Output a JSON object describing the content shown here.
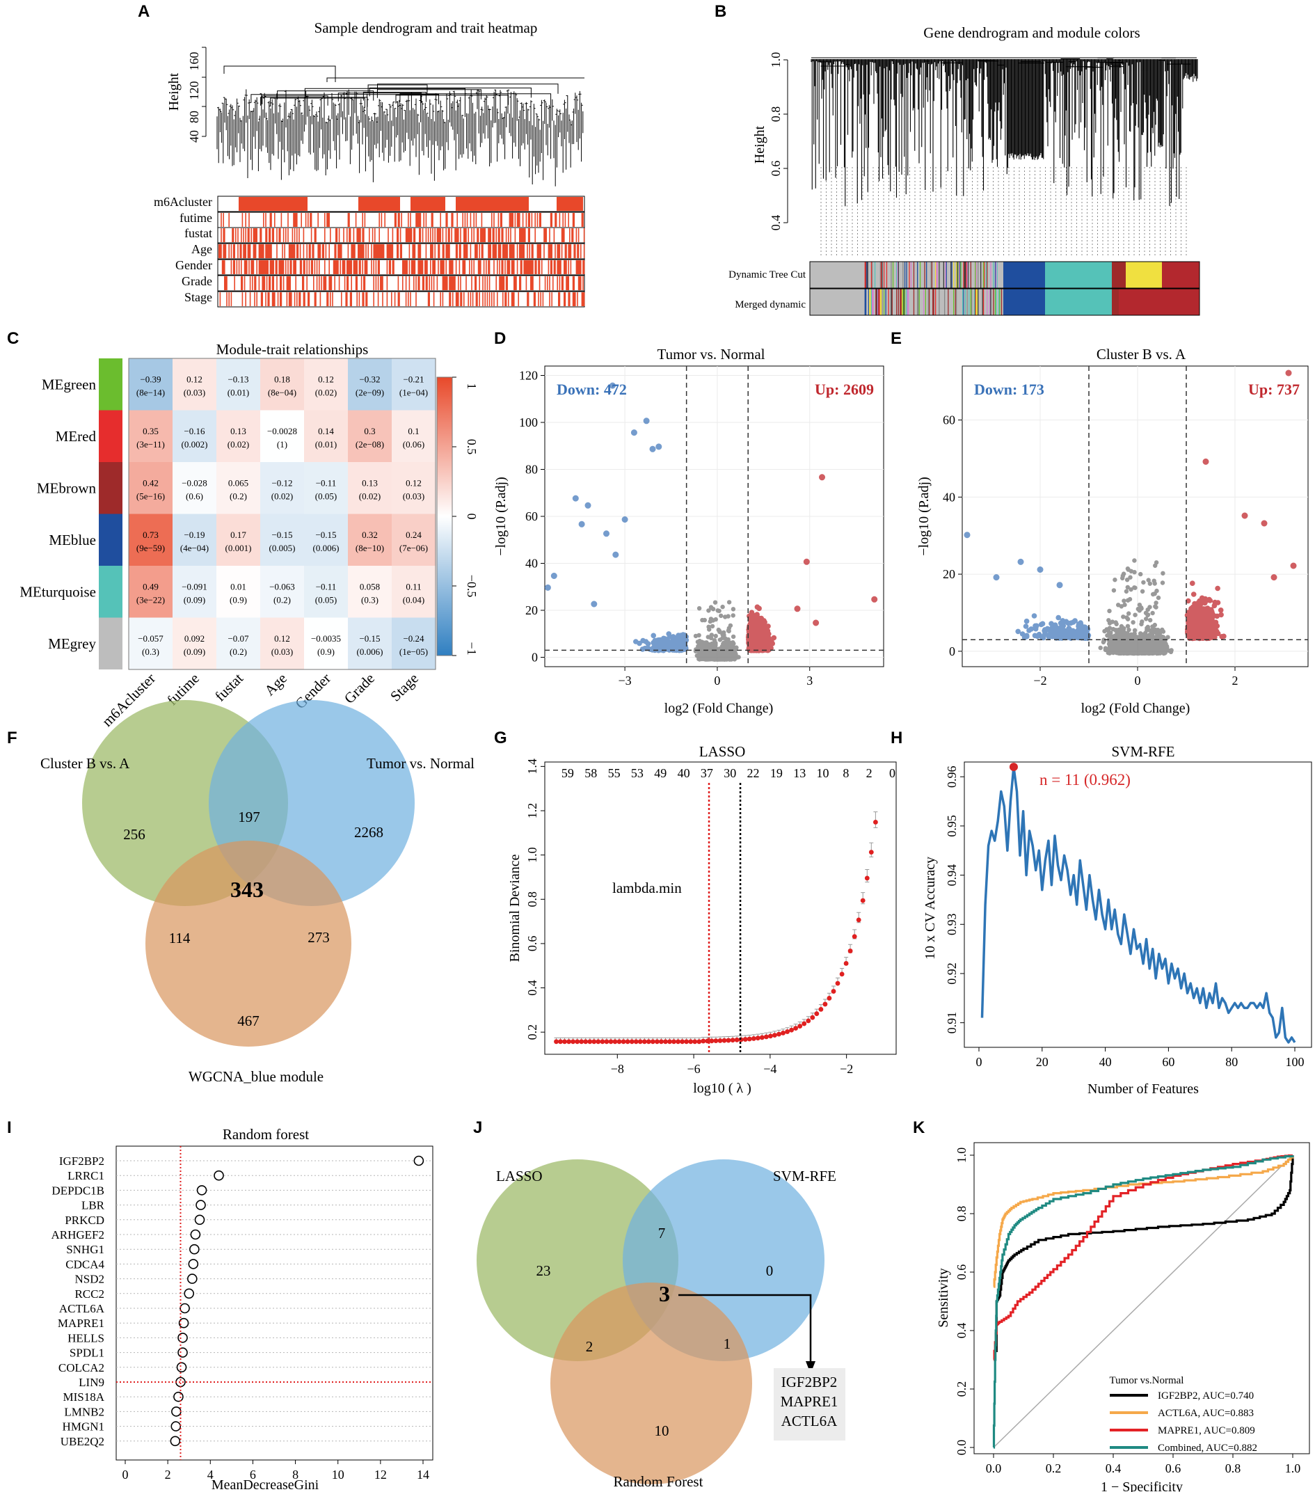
{
  "panels": {
    "A": {
      "label": "A",
      "title": "Sample dendrogram and trait heatmap",
      "ylabel": "Height",
      "yticks": [
        "40",
        "80",
        "120",
        "160"
      ],
      "tracks": [
        "m6Acluster",
        "futime",
        "fustat",
        "Age",
        "Gender",
        "Grade",
        "Stage"
      ]
    },
    "B": {
      "label": "B",
      "title": "Gene dendrogram and module colors",
      "ylabel": "Height",
      "yticks": [
        "0.4",
        "0.6",
        "0.8",
        "1.0"
      ],
      "tracks": [
        "Dynamic Tree Cut",
        "Merged dynamic"
      ]
    },
    "C": {
      "label": "C",
      "title": "Module-trait relationships",
      "modules": [
        "MEgreen",
        "MEred",
        "MEbrown",
        "MEblue",
        "MEturquoise",
        "MEgrey"
      ],
      "module_colors": [
        "#6bbd2e",
        "#e62d2d",
        "#9e2a2a",
        "#1f4e9e",
        "#55c2b8",
        "#bdbdbd"
      ],
      "traits": [
        "m6Acluster",
        "futime",
        "fustat",
        "Age",
        "Gender",
        "Grade",
        "Stage"
      ],
      "r": [
        [
          "−0.39",
          "0.12",
          "−0.13",
          "0.18",
          "0.12",
          "−0.32",
          "−0.21"
        ],
        [
          "0.35",
          "−0.16",
          "0.13",
          "−0.0028",
          "0.14",
          "0.3",
          "0.1"
        ],
        [
          "0.42",
          "−0.028",
          "0.065",
          "−0.12",
          "−0.11",
          "0.13",
          "0.12"
        ],
        [
          "0.73",
          "−0.19",
          "0.17",
          "−0.15",
          "−0.15",
          "0.32",
          "0.24"
        ],
        [
          "0.49",
          "−0.091",
          "0.01",
          "−0.063",
          "−0.11",
          "0.058",
          "0.11"
        ],
        [
          "−0.057",
          "0.092",
          "−0.07",
          "0.12",
          "−0.0035",
          "−0.15",
          "−0.24"
        ]
      ],
      "p": [
        [
          "(8e−14)",
          "(0.03)",
          "(0.01)",
          "(8e−04)",
          "(0.02)",
          "(2e−09)",
          "(1e−04)"
        ],
        [
          "(3e−11)",
          "(0.002)",
          "(0.02)",
          "(1)",
          "(0.01)",
          "(2e−08)",
          "(0.06)"
        ],
        [
          "(5e−16)",
          "(0.6)",
          "(0.2)",
          "(0.02)",
          "(0.05)",
          "(0.02)",
          "(0.03)"
        ],
        [
          "(9e−59)",
          "(4e−04)",
          "(0.001)",
          "(0.005)",
          "(0.006)",
          "(8e−10)",
          "(7e−06)"
        ],
        [
          "(3e−22)",
          "(0.09)",
          "(0.9)",
          "(0.2)",
          "(0.05)",
          "(0.3)",
          "(0.04)"
        ],
        [
          "(0.3)",
          "(0.09)",
          "(0.2)",
          "(0.03)",
          "(0.9)",
          "(0.006)",
          "(1e−05)"
        ]
      ],
      "values": [
        [
          -0.39,
          0.12,
          -0.13,
          0.18,
          0.12,
          -0.32,
          -0.21
        ],
        [
          0.35,
          -0.16,
          0.13,
          -0.0028,
          0.14,
          0.3,
          0.1
        ],
        [
          0.42,
          -0.028,
          0.065,
          -0.12,
          -0.11,
          0.13,
          0.12
        ],
        [
          0.73,
          -0.19,
          0.17,
          -0.15,
          -0.15,
          0.32,
          0.24
        ],
        [
          0.49,
          -0.091,
          0.01,
          -0.063,
          -0.11,
          0.058,
          0.11
        ],
        [
          -0.057,
          0.092,
          -0.07,
          0.12,
          -0.0035,
          -0.15,
          -0.24
        ]
      ],
      "legend_ticks": [
        "1",
        "0.5",
        "0",
        "−0.5",
        "−1"
      ]
    },
    "D": {
      "label": "D",
      "title": "Tumor vs. Normal",
      "down": "Down: 472",
      "up": "Up: 2609",
      "xlabel": "log2 (Fold Change)",
      "ylabel": "−log10 (P.adj)",
      "xticks": [
        "−3",
        "0",
        "3"
      ],
      "yticks": [
        "0",
        "20",
        "40",
        "60",
        "80",
        "100",
        "120"
      ]
    },
    "E": {
      "label": "E",
      "title": "Cluster B vs. A",
      "down": "Down: 173",
      "up": "Up: 737",
      "xlabel": "log2 (Fold Change)",
      "ylabel": "−log10 (P.adj)",
      "xticks": [
        "−2",
        "0",
        "2"
      ],
      "yticks": [
        "0",
        "20",
        "40",
        "60"
      ]
    },
    "F": {
      "label": "F",
      "sets": [
        "Cluster B vs. A",
        "Tumor vs. Normal",
        "WGCNA_blue module"
      ],
      "counts": {
        "a": "256",
        "b": "2268",
        "c": "467",
        "ab": "197",
        "ac": "114",
        "bc": "273",
        "abc": "343"
      }
    },
    "G": {
      "label": "G",
      "title": "LASSO",
      "top_counts": [
        "59",
        "58",
        "55",
        "53",
        "49",
        "40",
        "37",
        "30",
        "22",
        "19",
        "13",
        "10",
        "8",
        "2",
        "0"
      ],
      "annotation": "lambda.min",
      "xlabel": "log10 ( λ )",
      "ylabel": "Binomial Deviance",
      "xticks": [
        "−8",
        "−6",
        "−4",
        "−2"
      ],
      "yticks": [
        "0.2",
        "0.4",
        "0.6",
        "0.8",
        "1.0",
        "1.2",
        "1.4"
      ]
    },
    "H": {
      "label": "H",
      "title": "SVM-RFE",
      "annotation": "n = 11 (0.962)",
      "xlabel": "Number of Features",
      "ylabel": "10 x CV Accuracy",
      "xticks": [
        "0",
        "20",
        "40",
        "60",
        "80",
        "100"
      ],
      "yticks": [
        "0.91",
        "0.92",
        "0.93",
        "0.94",
        "0.95",
        "0.96"
      ]
    },
    "I": {
      "label": "I",
      "title": "Random forest",
      "xlabel": "MeanDecreaseGini",
      "xticks": [
        "0",
        "2",
        "4",
        "6",
        "8",
        "10",
        "12",
        "14"
      ]
    },
    "J": {
      "label": "J",
      "sets": [
        "LASSO",
        "SVM-RFE",
        "Random Forest"
      ],
      "counts": {
        "a": "23",
        "b": "0",
        "c": "10",
        "ab": "7",
        "ac": "2",
        "bc": "1",
        "abc": "3"
      },
      "genes": [
        "IGF2BP2",
        "MAPRE1",
        "ACTL6A"
      ]
    },
    "K": {
      "label": "K",
      "xlabel": "1 − Specificity",
      "ylabel": "Sensitivity",
      "xticks": [
        "0.0",
        "0.2",
        "0.4",
        "0.6",
        "0.8",
        "1.0"
      ],
      "yticks": [
        "0.0",
        "0.2",
        "0.4",
        "0.6",
        "0.8",
        "1.0"
      ],
      "legend_title": "Tumor vs.Normal"
    }
  },
  "chart_data": [
    {
      "type": "scatter",
      "panel": "H",
      "title": "SVM-RFE",
      "xlabel": "Number of Features",
      "ylabel": "10 x CV Accuracy",
      "xlim": [
        0,
        100
      ],
      "ylim": [
        0.905,
        0.963
      ],
      "x": [
        1,
        2,
        3,
        4,
        5,
        6,
        7,
        8,
        9,
        10,
        11,
        12,
        13,
        14,
        15,
        16,
        17,
        18,
        19,
        20,
        21,
        22,
        23,
        24,
        25,
        26,
        27,
        28,
        29,
        30,
        31,
        32,
        33,
        34,
        35,
        36,
        37,
        38,
        39,
        40,
        41,
        42,
        43,
        44,
        45,
        46,
        47,
        48,
        49,
        50,
        51,
        52,
        53,
        54,
        55,
        56,
        57,
        58,
        59,
        60,
        61,
        62,
        63,
        64,
        65,
        66,
        67,
        68,
        69,
        70,
        71,
        72,
        73,
        74,
        75,
        76,
        77,
        78,
        79,
        80,
        81,
        82,
        83,
        84,
        85,
        86,
        87,
        88,
        89,
        90,
        91,
        92,
        93,
        94,
        95,
        96,
        97,
        98,
        99,
        100
      ],
      "y": [
        0.911,
        0.934,
        0.946,
        0.949,
        0.947,
        0.951,
        0.957,
        0.954,
        0.945,
        0.955,
        0.962,
        0.957,
        0.944,
        0.953,
        0.94,
        0.949,
        0.946,
        0.941,
        0.945,
        0.937,
        0.943,
        0.947,
        0.938,
        0.948,
        0.942,
        0.939,
        0.944,
        0.941,
        0.936,
        0.94,
        0.934,
        0.943,
        0.938,
        0.933,
        0.94,
        0.935,
        0.931,
        0.937,
        0.932,
        0.929,
        0.935,
        0.929,
        0.933,
        0.928,
        0.926,
        0.932,
        0.928,
        0.924,
        0.929,
        0.925,
        0.926,
        0.922,
        0.927,
        0.921,
        0.925,
        0.919,
        0.924,
        0.921,
        0.923,
        0.918,
        0.922,
        0.919,
        0.921,
        0.917,
        0.92,
        0.916,
        0.918,
        0.915,
        0.917,
        0.914,
        0.917,
        0.913,
        0.916,
        0.914,
        0.918,
        0.913,
        0.915,
        0.914,
        0.912,
        0.913,
        0.914,
        0.913,
        0.914,
        0.913,
        0.913,
        0.914,
        0.914,
        0.913,
        0.914,
        0.913,
        0.916,
        0.912,
        0.911,
        0.907,
        0.908,
        0.913,
        0.907,
        0.906,
        0.907,
        0.906
      ],
      "highlight": {
        "x": 11,
        "y": 0.962
      }
    },
    {
      "type": "scatter",
      "panel": "I",
      "title": "Random forest",
      "xlabel": "MeanDecreaseGini",
      "xlim": [
        0,
        14.5
      ],
      "categories": [
        "IGF2BP2",
        "LRRC1",
        "DEPDC1B",
        "LBR",
        "PRKCD",
        "ARHGEF2",
        "SNHG1",
        "CDCA4",
        "NSD2",
        "RCC2",
        "ACTL6A",
        "MAPRE1",
        "HELLS",
        "SPDL1",
        "COLCA2",
        "LIN9",
        "MIS18A",
        "LMNB2",
        "HMGN1",
        "UBE2Q2"
      ],
      "values": [
        13.8,
        4.4,
        3.6,
        3.55,
        3.5,
        3.3,
        3.25,
        3.2,
        3.15,
        3.0,
        2.8,
        2.75,
        2.7,
        2.7,
        2.65,
        2.6,
        2.5,
        2.4,
        2.38,
        2.35
      ],
      "threshold_x": 2.6,
      "threshold_gene": "LIN9"
    },
    {
      "type": "line",
      "panel": "K",
      "xlabel": "1 − Specificity",
      "ylabel": "Sensitivity",
      "xlim": [
        0,
        1
      ],
      "ylim": [
        0,
        1
      ],
      "series": [
        {
          "name": "IGF2BP2",
          "label": "IGF2BP2, AUC=0.740",
          "auc": 0.74,
          "color": "#000000",
          "x": [
            0,
            0.01,
            0.01,
            0.02,
            0.03,
            0.04,
            0.05,
            0.07,
            0.1,
            0.15,
            0.25,
            0.4,
            0.55,
            0.7,
            0.85,
            0.93,
            0.97,
            0.99,
            1.0
          ],
          "y": [
            0.33,
            0.33,
            0.5,
            0.52,
            0.6,
            0.62,
            0.64,
            0.66,
            0.68,
            0.71,
            0.73,
            0.74,
            0.755,
            0.765,
            0.78,
            0.8,
            0.84,
            0.88,
            1.0
          ]
        },
        {
          "name": "ACTL6A",
          "label": "ACTL6A, AUC=0.883",
          "auc": 0.883,
          "color": "#f5a84a",
          "x": [
            0,
            0.01,
            0.02,
            0.03,
            0.04,
            0.06,
            0.09,
            0.13,
            0.2,
            0.3,
            0.45,
            0.6,
            0.75,
            0.9,
            0.97,
            1.0
          ],
          "y": [
            0.55,
            0.65,
            0.73,
            0.78,
            0.8,
            0.82,
            0.84,
            0.85,
            0.87,
            0.88,
            0.9,
            0.91,
            0.925,
            0.945,
            0.97,
            1.0
          ]
        },
        {
          "name": "MAPRE1",
          "label": "MAPRE1, AUC=0.809",
          "auc": 0.809,
          "color": "#e32226",
          "x": [
            0,
            0.01,
            0.02,
            0.05,
            0.08,
            0.12,
            0.16,
            0.2,
            0.25,
            0.3,
            0.35,
            0.4,
            0.5,
            0.6,
            0.7,
            0.8,
            0.9,
            0.95,
            1.0
          ],
          "y": [
            0.3,
            0.42,
            0.43,
            0.45,
            0.5,
            0.53,
            0.57,
            0.61,
            0.66,
            0.72,
            0.79,
            0.86,
            0.9,
            0.93,
            0.95,
            0.97,
            0.985,
            0.995,
            1.0
          ]
        },
        {
          "name": "Combined",
          "label": "Combined, AUC=0.882",
          "auc": 0.882,
          "color": "#1f8a82",
          "x": [
            0,
            0.005,
            0.01,
            0.02,
            0.03,
            0.05,
            0.07,
            0.09,
            0.12,
            0.15,
            0.2,
            0.3,
            0.4,
            0.5,
            0.6,
            0.7,
            0.8,
            0.9,
            1.0
          ],
          "y": [
            0.0,
            0.3,
            0.5,
            0.58,
            0.66,
            0.73,
            0.76,
            0.78,
            0.8,
            0.82,
            0.85,
            0.87,
            0.9,
            0.92,
            0.935,
            0.95,
            0.96,
            0.985,
            1.0
          ]
        }
      ]
    }
  ]
}
